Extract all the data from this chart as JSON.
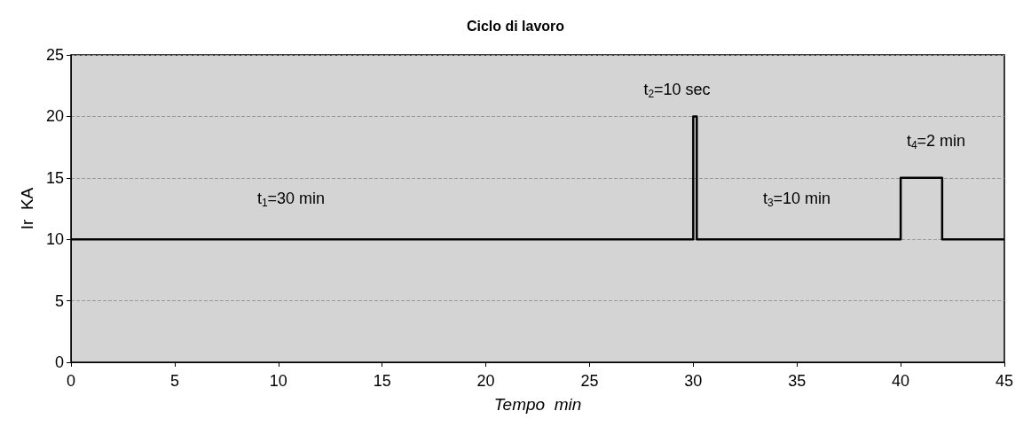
{
  "chart_data": {
    "type": "line",
    "title": "Ciclo di lavoro",
    "xlabel": "Tempo  min",
    "ylabel": "Ir  KA",
    "x": [
      0,
      30,
      30,
      30.17,
      30.17,
      40,
      40,
      42,
      42,
      45
    ],
    "series": [
      {
        "color": "#000000",
        "values": [
          10,
          10,
          20,
          20,
          10,
          10,
          15,
          15,
          10,
          10
        ]
      }
    ],
    "xlim": [
      0,
      45
    ],
    "xticks": [
      0,
      5,
      10,
      15,
      20,
      25,
      30,
      35,
      40,
      45
    ],
    "ylim": [
      0,
      25
    ],
    "yticks": [
      0,
      5,
      10,
      15,
      20,
      25
    ],
    "grid": "y",
    "marker": "none",
    "line_style": "solid",
    "annotations": [
      "t$_{1}$=30 min",
      "t$_{2}$=10 sec",
      "t$_{3}$=10 min",
      "t$_{4}$=2 min"
    ]
  }
}
